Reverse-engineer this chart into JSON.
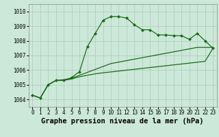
{
  "title": "Graphe pression niveau de la mer (hPa)",
  "bg_color": "#cce8d8",
  "grid_color": "#aaccbb",
  "line_color": "#1a6b1a",
  "ylim": [
    1003.5,
    1010.5
  ],
  "xlim": [
    -0.5,
    23.5
  ],
  "yticks": [
    1004,
    1005,
    1006,
    1007,
    1008,
    1009,
    1010
  ],
  "xticks": [
    0,
    1,
    2,
    3,
    4,
    5,
    6,
    7,
    8,
    9,
    10,
    11,
    12,
    13,
    14,
    15,
    16,
    17,
    18,
    19,
    20,
    21,
    22,
    23
  ],
  "line1": [
    1004.3,
    1004.1,
    1005.0,
    1005.3,
    1005.3,
    1005.5,
    1005.9,
    1007.6,
    1008.5,
    1009.4,
    1009.65,
    1009.65,
    1009.55,
    1009.1,
    1008.75,
    1008.75,
    1008.4,
    1008.4,
    1008.35,
    1008.35,
    1008.1,
    1008.5,
    1008.0,
    1007.5
  ],
  "line2": [
    1004.3,
    1004.1,
    1005.0,
    1005.3,
    1005.35,
    1005.45,
    1005.65,
    1005.85,
    1006.05,
    1006.25,
    1006.45,
    1006.55,
    1006.65,
    1006.75,
    1006.85,
    1006.95,
    1007.05,
    1007.15,
    1007.25,
    1007.35,
    1007.45,
    1007.55,
    1007.55,
    1007.55
  ],
  "line3": [
    1004.3,
    1004.1,
    1005.0,
    1005.3,
    1005.3,
    1005.4,
    1005.55,
    1005.65,
    1005.75,
    1005.82,
    1005.88,
    1005.94,
    1006.0,
    1006.06,
    1006.12,
    1006.18,
    1006.24,
    1006.3,
    1006.36,
    1006.42,
    1006.48,
    1006.54,
    1006.6,
    1007.48
  ],
  "marker": "D",
  "markersize": 2.0,
  "linewidth": 0.9,
  "title_fontsize": 7.5,
  "tick_fontsize": 5.5
}
